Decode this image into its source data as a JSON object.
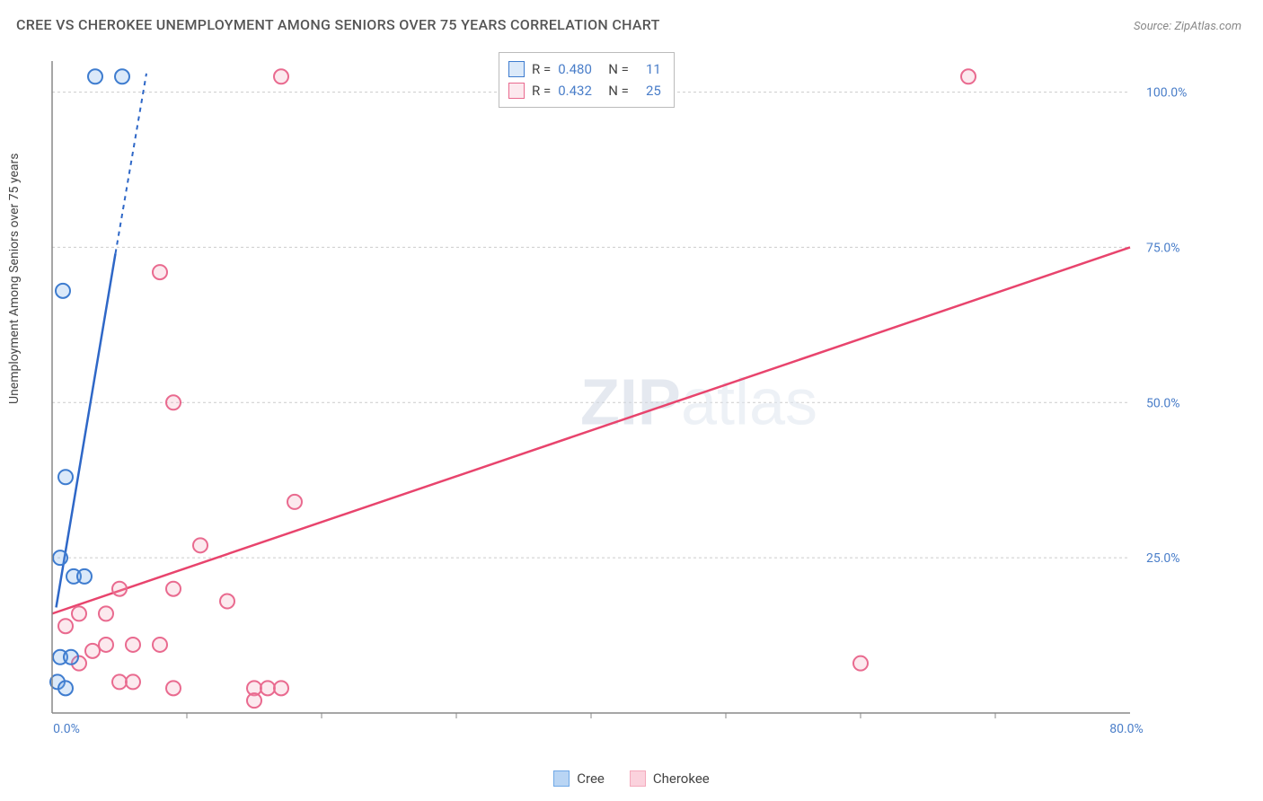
{
  "title": "CREE VS CHEROKEE UNEMPLOYMENT AMONG SENIORS OVER 75 YEARS CORRELATION CHART",
  "source_label": "Source:",
  "source_value": "ZipAtlas.com",
  "y_axis_label": "Unemployment Among Seniors over 75 years",
  "watermark_a": "ZIP",
  "watermark_b": "atlas",
  "chart": {
    "type": "scatter-correlation",
    "xlim": [
      0,
      80
    ],
    "ylim": [
      0,
      105
    ],
    "xticks": [
      0,
      80
    ],
    "xtick_labels": [
      "0.0%",
      "80.0%"
    ],
    "xtick_marks": [
      10,
      20,
      30,
      40,
      50,
      60,
      70
    ],
    "yticks": [
      25,
      50,
      75,
      100
    ],
    "ytick_labels": [
      "25.0%",
      "50.0%",
      "75.0%",
      "100.0%"
    ],
    "grid_color": "#cccccc",
    "background_color": "#ffffff",
    "axis_color": "#888888",
    "tick_label_color": "#4a7ec9",
    "marker_radius": 8,
    "marker_fill_opacity": 0.25,
    "marker_stroke_width": 2,
    "trend_line_width": 2.5,
    "series": [
      {
        "name": "Cree",
        "color": "#6fa8e6",
        "stroke": "#3e7ccf",
        "line_color": "#2e67c7",
        "R": "0.480",
        "N": "11",
        "points": [
          [
            3.2,
            102.5
          ],
          [
            5.2,
            102.5
          ],
          [
            0.8,
            68
          ],
          [
            1.0,
            38
          ],
          [
            0.6,
            25
          ],
          [
            1.6,
            22
          ],
          [
            2.4,
            22
          ],
          [
            0.6,
            9
          ],
          [
            1.4,
            9
          ],
          [
            0.4,
            5
          ],
          [
            1.0,
            4
          ]
        ],
        "trend": {
          "x1": 0.3,
          "y1": 17,
          "x2": 4.7,
          "y2": 74,
          "dash_x2": 7.0,
          "dash_y2": 103
        }
      },
      {
        "name": "Cherokee",
        "color": "#f4a9bc",
        "stroke": "#e96a8f",
        "line_color": "#e8446d",
        "R": "0.432",
        "N": "25",
        "points": [
          [
            17,
            102.5
          ],
          [
            68,
            102.5
          ],
          [
            8,
            71
          ],
          [
            9,
            50
          ],
          [
            18,
            34
          ],
          [
            11,
            27
          ],
          [
            5,
            20
          ],
          [
            9,
            20
          ],
          [
            13,
            18
          ],
          [
            2,
            16
          ],
          [
            4,
            16
          ],
          [
            1,
            14
          ],
          [
            4,
            11
          ],
          [
            6,
            11
          ],
          [
            8,
            11
          ],
          [
            3,
            10
          ],
          [
            2,
            8
          ],
          [
            60,
            8
          ],
          [
            5,
            5
          ],
          [
            6,
            5
          ],
          [
            9,
            4
          ],
          [
            15,
            4
          ],
          [
            16,
            4
          ],
          [
            17,
            4
          ],
          [
            15,
            2
          ]
        ],
        "trend": {
          "x1": 0,
          "y1": 16,
          "x2": 80,
          "y2": 75
        }
      }
    ]
  },
  "legend_top": {
    "r_label": "R =",
    "n_label": "N ="
  },
  "legend_bottom": [
    {
      "label": "Cree",
      "fill": "#b9d5f4",
      "stroke": "#6fa8e6"
    },
    {
      "label": "Cherokee",
      "fill": "#fbd2dd",
      "stroke": "#f4a9bc"
    }
  ]
}
